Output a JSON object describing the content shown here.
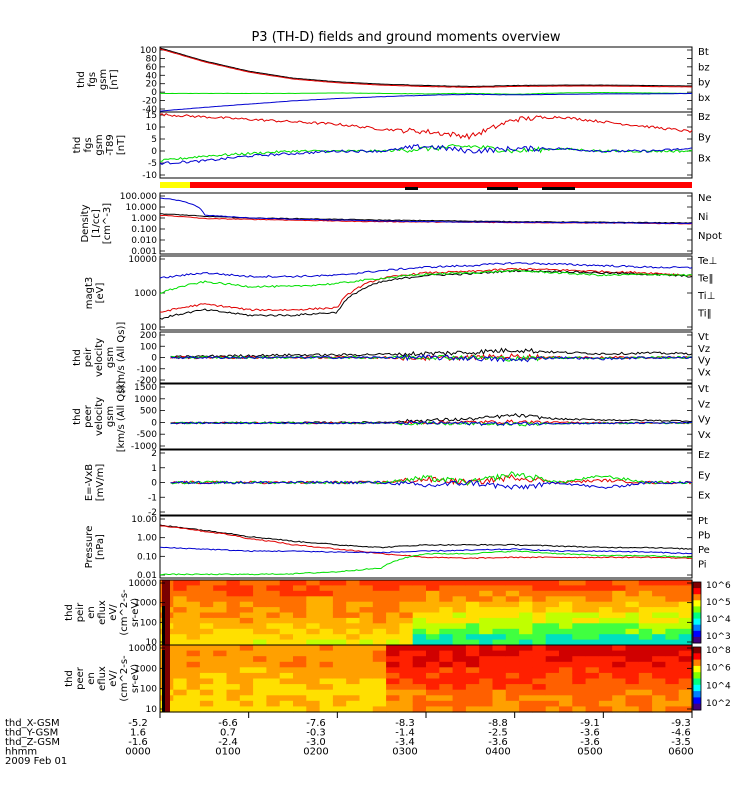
{
  "title": "P3 (TH-D) fields and ground moments overview",
  "colors": {
    "black": "#000000",
    "red": "#e00000",
    "green": "#00e000",
    "blue": "#0000d0",
    "yellow": "#ffff00"
  },
  "panels": [
    {
      "id": "fgs-gsm",
      "ylabel": [
        "thd",
        "fgs",
        "gsm",
        "[nT]"
      ],
      "ylim": [
        -40,
        100
      ],
      "ticks": [
        100,
        80,
        60,
        40,
        20,
        0,
        -20,
        -40
      ],
      "legend": [
        {
          "label": "Bt",
          "color": "#000000"
        },
        {
          "label": "bz",
          "color": "#e00000"
        },
        {
          "label": "by",
          "color": "#00e000"
        },
        {
          "label": "bx",
          "color": "#0000d0"
        }
      ]
    },
    {
      "id": "fgs-dtrend",
      "ylabel": [
        "thd",
        "fgs",
        "gsm",
        "-T89",
        "[nT]"
      ],
      "ylim": [
        -12,
        15
      ],
      "ticks": [
        15,
        10,
        5,
        0,
        -5,
        -10
      ],
      "legend": [
        {
          "label": "Bz",
          "color": "#e00000"
        },
        {
          "label": "By",
          "color": "#00e000"
        },
        {
          "label": "Bx",
          "color": "#0000d0"
        }
      ]
    },
    {
      "id": "density",
      "ylabel": [
        "Density",
        "[1/cc]",
        "[cm^-3]"
      ],
      "log": true,
      "ticks": [
        "100.000",
        "10.000",
        "1.000",
        "0.100",
        "0.010",
        "0.001"
      ],
      "legend": [
        {
          "label": "Ne",
          "color": "#e00000"
        },
        {
          "label": "Ni",
          "color": "#000000"
        },
        {
          "label": "Npot",
          "color": "#0000d0"
        }
      ]
    },
    {
      "id": "temp",
      "ylabel": [
        "magt3",
        "[eV]"
      ],
      "log": true,
      "ticks": [
        "10000",
        "1000",
        "100"
      ],
      "legend": [
        {
          "label": "Te⊥",
          "color": "#e00000"
        },
        {
          "label": "Te‖",
          "color": "#000000"
        },
        {
          "label": "Ti⊥",
          "color": "#0000d0"
        },
        {
          "label": "Ti‖",
          "color": "#00e000"
        }
      ]
    },
    {
      "id": "peir-vel",
      "ylabel": [
        "thd",
        "peir",
        "velocity",
        "gsm",
        "[km/s (All Qs)]"
      ],
      "ylim": [
        -200,
        200
      ],
      "ticks": [
        200,
        100,
        0,
        -100,
        -200
      ],
      "legend": [
        {
          "label": "Vt",
          "color": "#000000"
        },
        {
          "label": "Vz",
          "color": "#e00000"
        },
        {
          "label": "Vy",
          "color": "#00e000"
        },
        {
          "label": "Vx",
          "color": "#0000d0"
        }
      ]
    },
    {
      "id": "peer-vel",
      "ylabel": [
        "thd",
        "peer",
        "velocity",
        "gsm",
        "[km/s (All Qs)]"
      ],
      "ylim": [
        -1000,
        1500
      ],
      "ticks": [
        1500,
        1000,
        500,
        0,
        -500,
        -1000
      ],
      "legend": [
        {
          "label": "Vt",
          "color": "#000000"
        },
        {
          "label": "Vz",
          "color": "#e00000"
        },
        {
          "label": "Vy",
          "color": "#00e000"
        },
        {
          "label": "Vx",
          "color": "#0000d0"
        }
      ]
    },
    {
      "id": "efield",
      "ylabel": [
        "E=-VxB",
        "[mV/m]"
      ],
      "ylim": [
        -3,
        3
      ],
      "ticks": [
        2,
        1,
        0,
        -1,
        -2
      ],
      "legend": [
        {
          "label": "Ez",
          "color": "#e00000"
        },
        {
          "label": "Ey",
          "color": "#00e000"
        },
        {
          "label": "Ex",
          "color": "#0000d0"
        }
      ]
    },
    {
      "id": "pressure",
      "ylabel": [
        "Pressure",
        "[nPa]"
      ],
      "log": true,
      "ticks": [
        "10.00",
        "1.00",
        "0.10",
        "0.01"
      ],
      "legend": [
        {
          "label": "Pt",
          "color": "#000000"
        },
        {
          "label": "Pb",
          "color": "#e00000"
        },
        {
          "label": "Pe",
          "color": "#00e000"
        },
        {
          "label": "Pi",
          "color": "#0000d0"
        }
      ]
    },
    {
      "id": "peir-spec",
      "ylabel": [
        "thd",
        "peir",
        "en",
        "eflux",
        "eV/",
        "(cm^2-s-",
        "sr-eV)"
      ],
      "ticks": [
        "10000",
        "1000",
        "100",
        "10"
      ],
      "colorbar": [
        "10^6",
        "10^5",
        "10^4",
        "10^3"
      ]
    },
    {
      "id": "peer-spec",
      "ylabel": [
        "thd",
        "peer",
        "en",
        "eflux",
        "eV/",
        "(cm^2-s-",
        "sr-eV)"
      ],
      "ticks": [
        "10000",
        "1000",
        "100",
        "10"
      ],
      "colorbar": [
        "10^8",
        "10^6",
        "10^4",
        "10^2"
      ]
    }
  ],
  "axis_table": {
    "row_labels": [
      "thd_X-GSM",
      "thd_Y-GSM",
      "thd_Z-GSM",
      "hhmm",
      "2009 Feb 01"
    ],
    "columns": [
      {
        "values": [
          "-5.2",
          "1.6",
          "-1.6",
          "0000"
        ]
      },
      {
        "values": [
          "-6.6",
          "0.7",
          "-2.4",
          "0100"
        ]
      },
      {
        "values": [
          "-7.6",
          "-0.3",
          "-3.0",
          "0200"
        ]
      },
      {
        "values": [
          "-8.3",
          "-1.4",
          "-3.4",
          "0300"
        ]
      },
      {
        "values": [
          "-8.8",
          "-2.5",
          "-3.6",
          "0400"
        ]
      },
      {
        "values": [
          "-9.1",
          "-3.6",
          "-3.6",
          "0500"
        ]
      },
      {
        "values": [
          "-9.3",
          "-4.6",
          "-3.5",
          "0600"
        ]
      }
    ]
  },
  "chart_data": {
    "type": "line",
    "title": "P3 (TH-D) fields and ground moments overview",
    "x_label": "hhmm",
    "x": [
      "0000",
      "0030",
      "0100",
      "0130",
      "0200",
      "0230",
      "0300",
      "0330",
      "0400",
      "0430",
      "0500",
      "0530",
      "0600"
    ],
    "panels": [
      {
        "ylabel": "thd fgs gsm [nT]",
        "ylim": [
          -40,
          100
        ],
        "series": [
          {
            "name": "Bt",
            "values": [
              98,
              70,
              48,
              33,
              25,
              20,
              17,
              15,
              17,
              18,
              18,
              17,
              16
            ]
          },
          {
            "name": "bz",
            "values": [
              96,
              68,
              46,
              31,
              23,
              18,
              15,
              13,
              15,
              16,
              16,
              15,
              14
            ]
          },
          {
            "name": "by",
            "values": [
              0,
              0,
              0,
              0,
              1,
              0,
              -1,
              0,
              -2,
              1,
              2,
              1,
              0
            ]
          },
          {
            "name": "bx",
            "values": [
              -38,
              -30,
              -23,
              -16,
              -11,
              -7,
              -4,
              -2,
              -3,
              -2,
              -1,
              -1,
              0
            ]
          }
        ]
      },
      {
        "ylabel": "thd fgs gsm-T89 [nT]",
        "ylim": [
          -12,
          15
        ],
        "series": [
          {
            "name": "Bz",
            "values": [
              14,
              13,
              12,
              11,
              10,
              8,
              7,
              5,
              12,
              13,
              11,
              9,
              7
            ]
          },
          {
            "name": "By",
            "values": [
              -5,
              -3,
              -2,
              -1,
              -1,
              -1,
              0,
              1,
              -1,
              0,
              -1,
              -1,
              -1
            ]
          },
          {
            "name": "Bx",
            "values": [
              -6,
              -5,
              -3,
              -2,
              -1,
              -1,
              1,
              -1,
              0,
              0,
              -1,
              -1,
              0
            ]
          }
        ]
      },
      {
        "ylabel": "Density [1/cc] [cm^-3]",
        "log": true,
        "series": [
          {
            "name": "Ne",
            "values": [
              1.5,
              0.8,
              0.7,
              0.6,
              0.5,
              0.45,
              0.42,
              0.4,
              0.38,
              0.36,
              0.35,
              0.33,
              0.3
            ]
          },
          {
            "name": "Ni",
            "values": [
              2.0,
              1.2,
              0.9,
              0.8,
              0.7,
              0.6,
              0.55,
              0.5,
              0.45,
              0.42,
              0.4,
              0.38,
              0.35
            ]
          },
          {
            "name": "Npot",
            "values": [
              40,
              1.5,
              0.9,
              0.7,
              0.6,
              0.5,
              0.45,
              0.42,
              0.4,
              0.38,
              0.36,
              0.34,
              0.32
            ]
          }
        ]
      },
      {
        "ylabel": "magt3 [eV]",
        "log": true,
        "series": [
          {
            "name": "Te⊥",
            "values": [
              300,
              500,
              350,
              350,
              400,
              2500,
              3500,
              3800,
              4500,
              4200,
              3800,
              3500,
              3000
            ]
          },
          {
            "name": "Te‖",
            "values": [
              200,
              350,
              250,
              250,
              300,
              2000,
              3000,
              3300,
              4000,
              3800,
              3500,
              3200,
              2800
            ]
          },
          {
            "name": "Ti⊥",
            "values": [
              2500,
              3500,
              2800,
              2800,
              3000,
              4000,
              5000,
              5500,
              6500,
              6000,
              5500,
              5000,
              4800
            ]
          },
          {
            "name": "Ti‖",
            "values": [
              1000,
              2000,
              1500,
              1500,
              1800,
              2500,
              3200,
              3500,
              4000,
              3500,
              3000,
              3200,
              3000
            ]
          }
        ]
      },
      {
        "ylabel": "thd peir velocity gsm [km/s (All Qs)]",
        "ylim": [
          -200,
          200
        ],
        "series": [
          {
            "name": "Vt",
            "values": [
              0,
              10,
              15,
              20,
              20,
              25,
              30,
              40,
              60,
              40,
              30,
              35,
              30
            ]
          },
          {
            "name": "Vz",
            "values": [
              0,
              0,
              0,
              0,
              0,
              0,
              -5,
              0,
              10,
              0,
              0,
              0,
              0
            ]
          },
          {
            "name": "Vy",
            "values": [
              0,
              0,
              0,
              0,
              0,
              0,
              5,
              0,
              -10,
              0,
              -5,
              0,
              0
            ]
          },
          {
            "name": "Vx",
            "values": [
              0,
              0,
              0,
              0,
              0,
              0,
              0,
              -5,
              -20,
              0,
              -10,
              0,
              0
            ]
          }
        ]
      },
      {
        "ylabel": "thd peer velocity gsm [km/s (All Qs)]",
        "ylim": [
          -1000,
          1500
        ],
        "series": [
          {
            "name": "Vt",
            "values": [
              0,
              10,
              10,
              15,
              20,
              30,
              100,
              150,
              300,
              150,
              120,
              100,
              80
            ]
          },
          {
            "name": "Vz",
            "values": [
              0,
              0,
              0,
              0,
              0,
              0,
              20,
              30,
              50,
              20,
              10,
              0,
              0
            ]
          },
          {
            "name": "Vy",
            "values": [
              0,
              0,
              0,
              0,
              0,
              0,
              -20,
              -30,
              -50,
              -20,
              -10,
              0,
              0
            ]
          },
          {
            "name": "Vx",
            "values": [
              0,
              0,
              0,
              0,
              0,
              0,
              0,
              -10,
              -30,
              -10,
              -10,
              0,
              0
            ]
          }
        ]
      },
      {
        "ylabel": "E=-VxB [mV/m]",
        "ylim": [
          -3,
          3
        ],
        "series": [
          {
            "name": "Ez",
            "values": [
              0,
              0,
              0,
              0,
              0,
              0,
              0.3,
              0,
              0.5,
              0,
              0.2,
              0,
              0
            ]
          },
          {
            "name": "Ey",
            "values": [
              0,
              0,
              0,
              0,
              0,
              0,
              0.4,
              0,
              0.8,
              0,
              0.6,
              0,
              0
            ]
          },
          {
            "name": "Ex",
            "values": [
              0,
              0,
              0,
              0,
              0,
              0,
              -0.3,
              0,
              -0.5,
              0,
              -0.5,
              0,
              0
            ]
          }
        ]
      },
      {
        "ylabel": "Pressure [nPa]",
        "log": true,
        "series": [
          {
            "name": "Pt",
            "values": [
              3.5,
              2.0,
              1.0,
              0.6,
              0.4,
              0.3,
              0.4,
              0.4,
              0.4,
              0.35,
              0.3,
              0.3,
              0.25
            ]
          },
          {
            "name": "Pb",
            "values": [
              3.4,
              1.8,
              0.8,
              0.4,
              0.25,
              0.15,
              0.1,
              0.09,
              0.1,
              0.1,
              0.1,
              0.1,
              0.09
            ]
          },
          {
            "name": "Pe",
            "values": [
              0.015,
              0.015,
              0.015,
              0.016,
              0.02,
              0.03,
              0.15,
              0.15,
              0.2,
              0.15,
              0.12,
              0.12,
              0.1
            ]
          },
          {
            "name": "Pi",
            "values": [
              0.3,
              0.25,
              0.2,
              0.2,
              0.18,
              0.17,
              0.2,
              0.22,
              0.25,
              0.2,
              0.2,
              0.18,
              0.15
            ]
          }
        ]
      }
    ]
  }
}
